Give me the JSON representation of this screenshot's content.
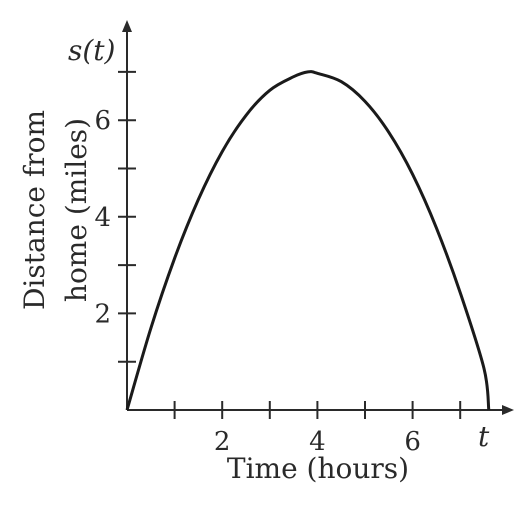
{
  "chart_data": {
    "type": "line",
    "title": "",
    "ylabel": "s(t)",
    "xlabel": "t",
    "ytitle_lines": [
      "Distance from",
      "home (miles)"
    ],
    "xtitle": "Time (hours)",
    "xlim": [
      0,
      8
    ],
    "ylim": [
      0,
      7.6
    ],
    "x_ticks": [
      1,
      2,
      3,
      4,
      5,
      6,
      7
    ],
    "x_tick_labels": [
      {
        "value": 2,
        "label": "2"
      },
      {
        "value": 4,
        "label": "4"
      },
      {
        "value": 6,
        "label": "6"
      }
    ],
    "y_ticks": [
      1,
      2,
      3,
      4,
      5,
      6,
      7
    ],
    "y_tick_labels": [
      {
        "value": 2,
        "label": "2"
      },
      {
        "value": 4,
        "label": "4"
      },
      {
        "value": 6,
        "label": "6"
      }
    ],
    "grid": false,
    "series": [
      {
        "x": [
          0,
          0.5,
          1,
          1.5,
          2,
          2.5,
          3,
          3.5,
          3.8,
          4,
          4.5,
          5,
          5.5,
          6,
          6.5,
          7,
          7.5,
          7.6
        ],
        "y": [
          0,
          1.69,
          3.14,
          4.36,
          5.35,
          6.1,
          6.62,
          6.9,
          7.0,
          6.97,
          6.8,
          6.39,
          5.75,
          4.88,
          3.77,
          2.43,
          0.86,
          0
        ]
      }
    ],
    "colors": {
      "axis": "#2a2a2a",
      "curve": "#1a1a1a",
      "background": "#ffffff"
    }
  }
}
